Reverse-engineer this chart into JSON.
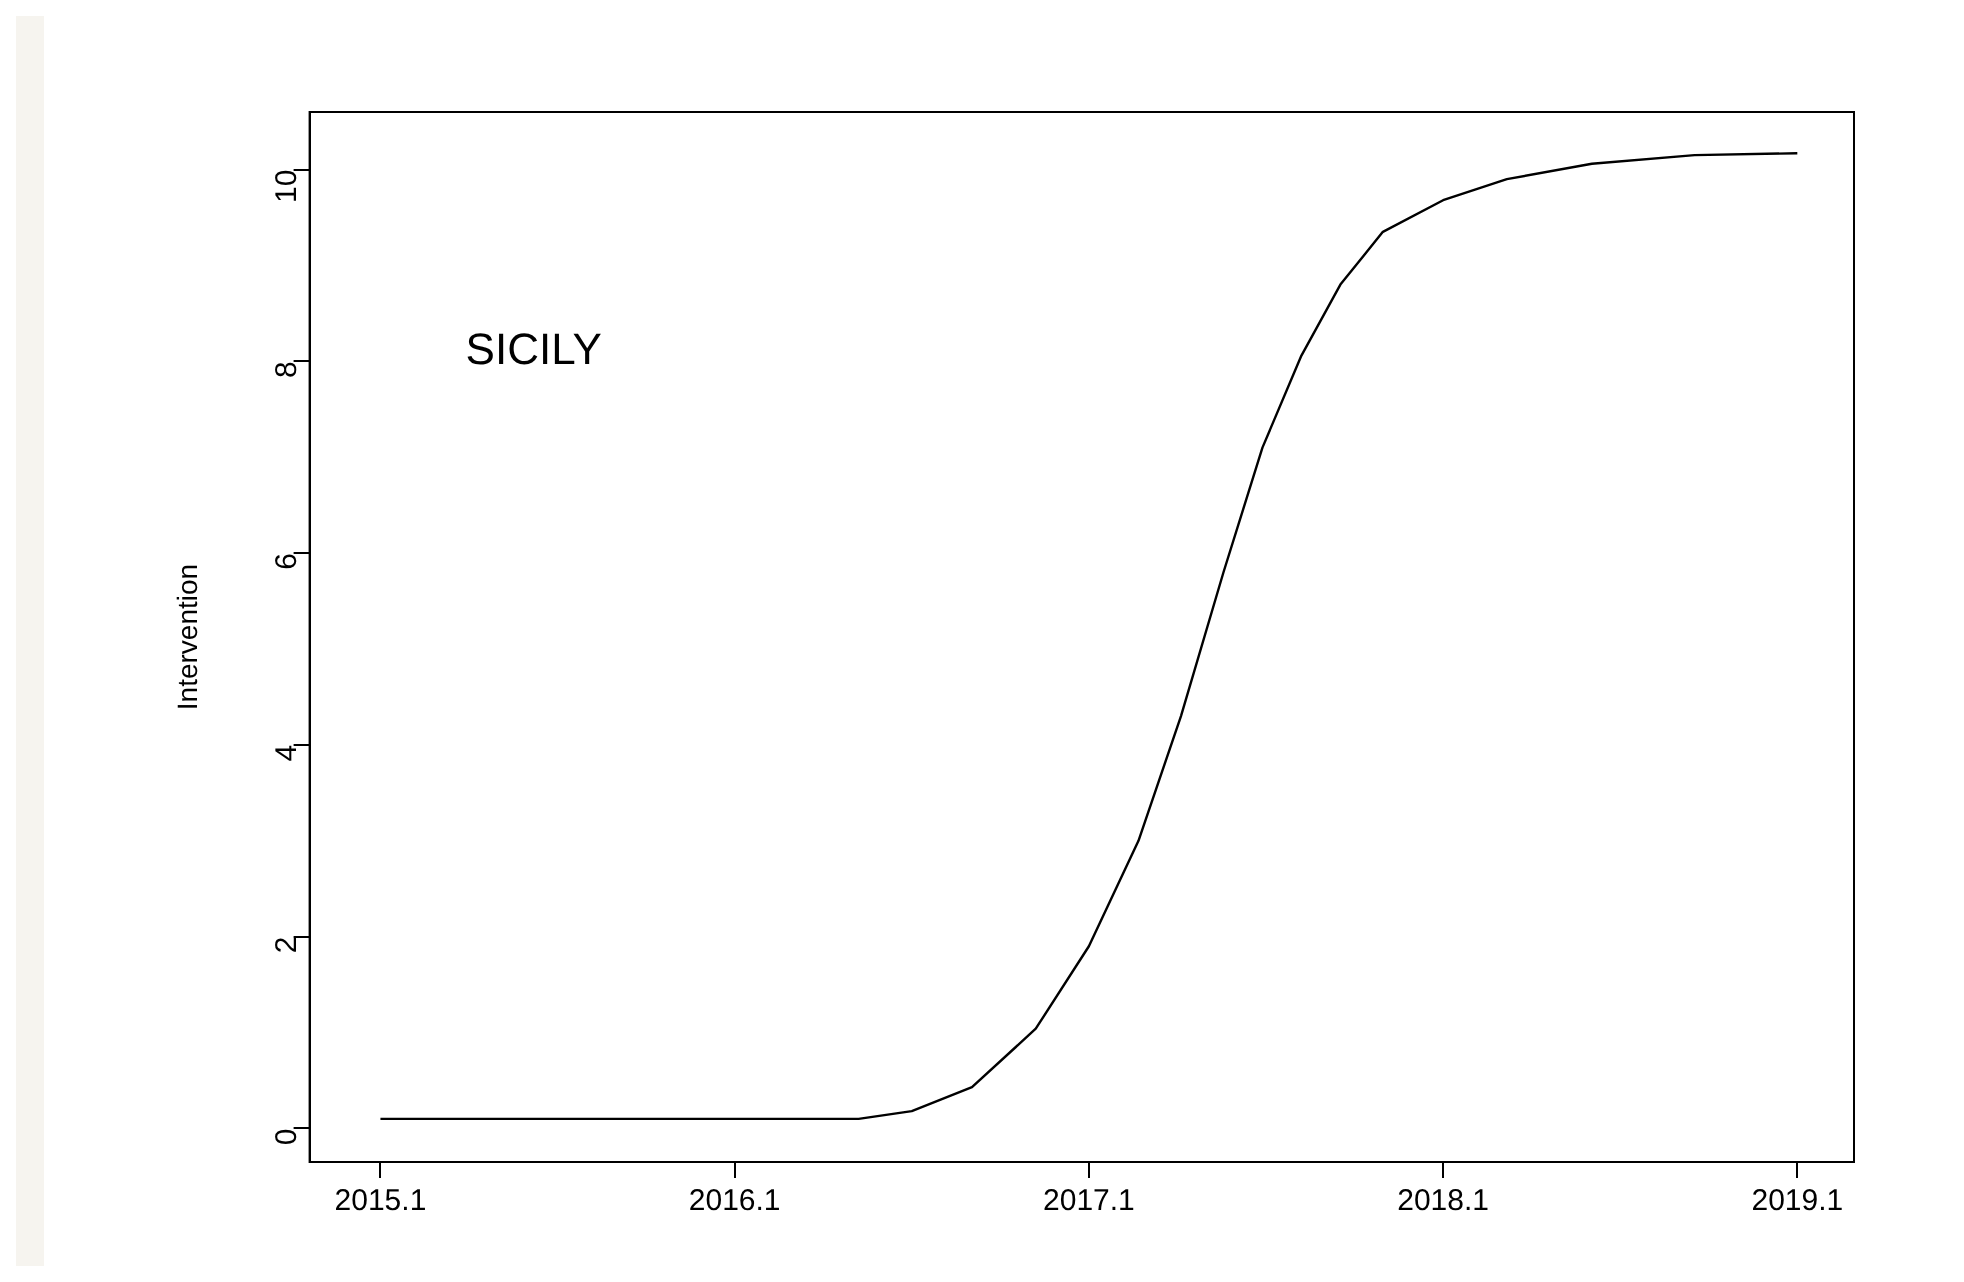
{
  "chart_data": {
    "type": "line",
    "ylabel": "Intervention",
    "annotations": [
      "SICILY"
    ],
    "series": [
      {
        "color": "#000000",
        "x": [
          2015.1,
          2015.6,
          2016.1,
          2016.45,
          2016.6,
          2016.77,
          2016.95,
          2017.1,
          2017.24,
          2017.36,
          2017.48,
          2017.59,
          2017.7,
          2017.81,
          2017.93,
          2018.1,
          2018.28,
          2018.52,
          2018.81,
          2019.1
        ],
        "values": [
          0.1,
          0.1,
          0.1,
          0.1,
          0.18,
          0.43,
          1.04,
          1.9,
          3.0,
          4.3,
          5.8,
          7.1,
          8.06,
          8.8,
          9.35,
          9.68,
          9.9,
          10.06,
          10.15,
          10.17
        ]
      }
    ],
    "xlim": [
      2014.9,
      2019.26
    ],
    "xticks": [
      2015.1,
      2016.1,
      2017.1,
      2018.1,
      2019.1
    ],
    "ylim": [
      -0.35,
      10.6
    ],
    "yticks": [
      0,
      2,
      4,
      6,
      8,
      10
    ],
    "grid": false,
    "legend": false,
    "marker": "none",
    "line_style": "solid"
  }
}
